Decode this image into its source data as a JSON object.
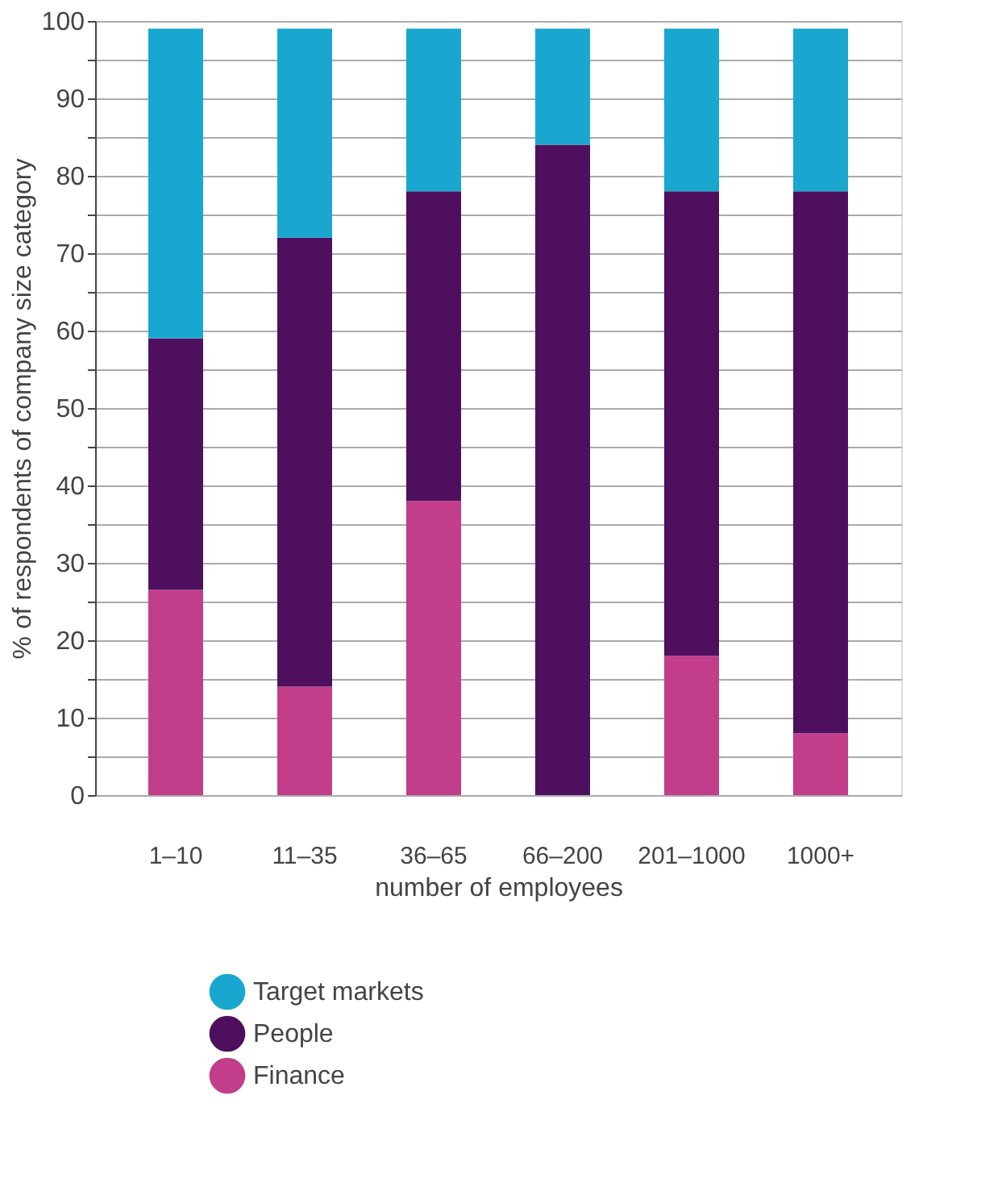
{
  "chart_data": {
    "type": "bar",
    "stacked": true,
    "xlabel": "number of employees",
    "ylabel": "% of respondents of company size category",
    "categories": [
      "1–10",
      "11–35",
      "36–65",
      "66–200",
      "201–1000",
      "1000+"
    ],
    "series": [
      {
        "name": "Finance",
        "color": "#c23d8a",
        "values": [
          26.5,
          14,
          38,
          0,
          18,
          8
        ]
      },
      {
        "name": "People",
        "color": "#4f0f5f",
        "values": [
          32.5,
          58,
          40,
          84,
          60,
          70
        ]
      },
      {
        "name": "Target markets",
        "color": "#19a7cf",
        "values": [
          40,
          27,
          21,
          15,
          21,
          21
        ]
      }
    ],
    "ylim": [
      0,
      100
    ],
    "yticks": [
      0,
      {
        "value": 5,
        "label": null
      },
      10,
      {
        "value": 15,
        "label": null
      },
      20,
      {
        "value": 25,
        "label": null
      },
      30,
      {
        "value": 35,
        "label": null
      },
      40,
      {
        "value": 45,
        "label": null
      },
      50,
      {
        "value": 55,
        "label": null
      },
      60,
      {
        "value": 65,
        "label": null
      },
      70,
      {
        "value": 75,
        "label": null
      },
      80,
      {
        "value": 85,
        "label": null
      },
      90,
      {
        "value": 95,
        "label": null
      },
      100
    ],
    "grid": "y",
    "legend": "bottom left"
  }
}
